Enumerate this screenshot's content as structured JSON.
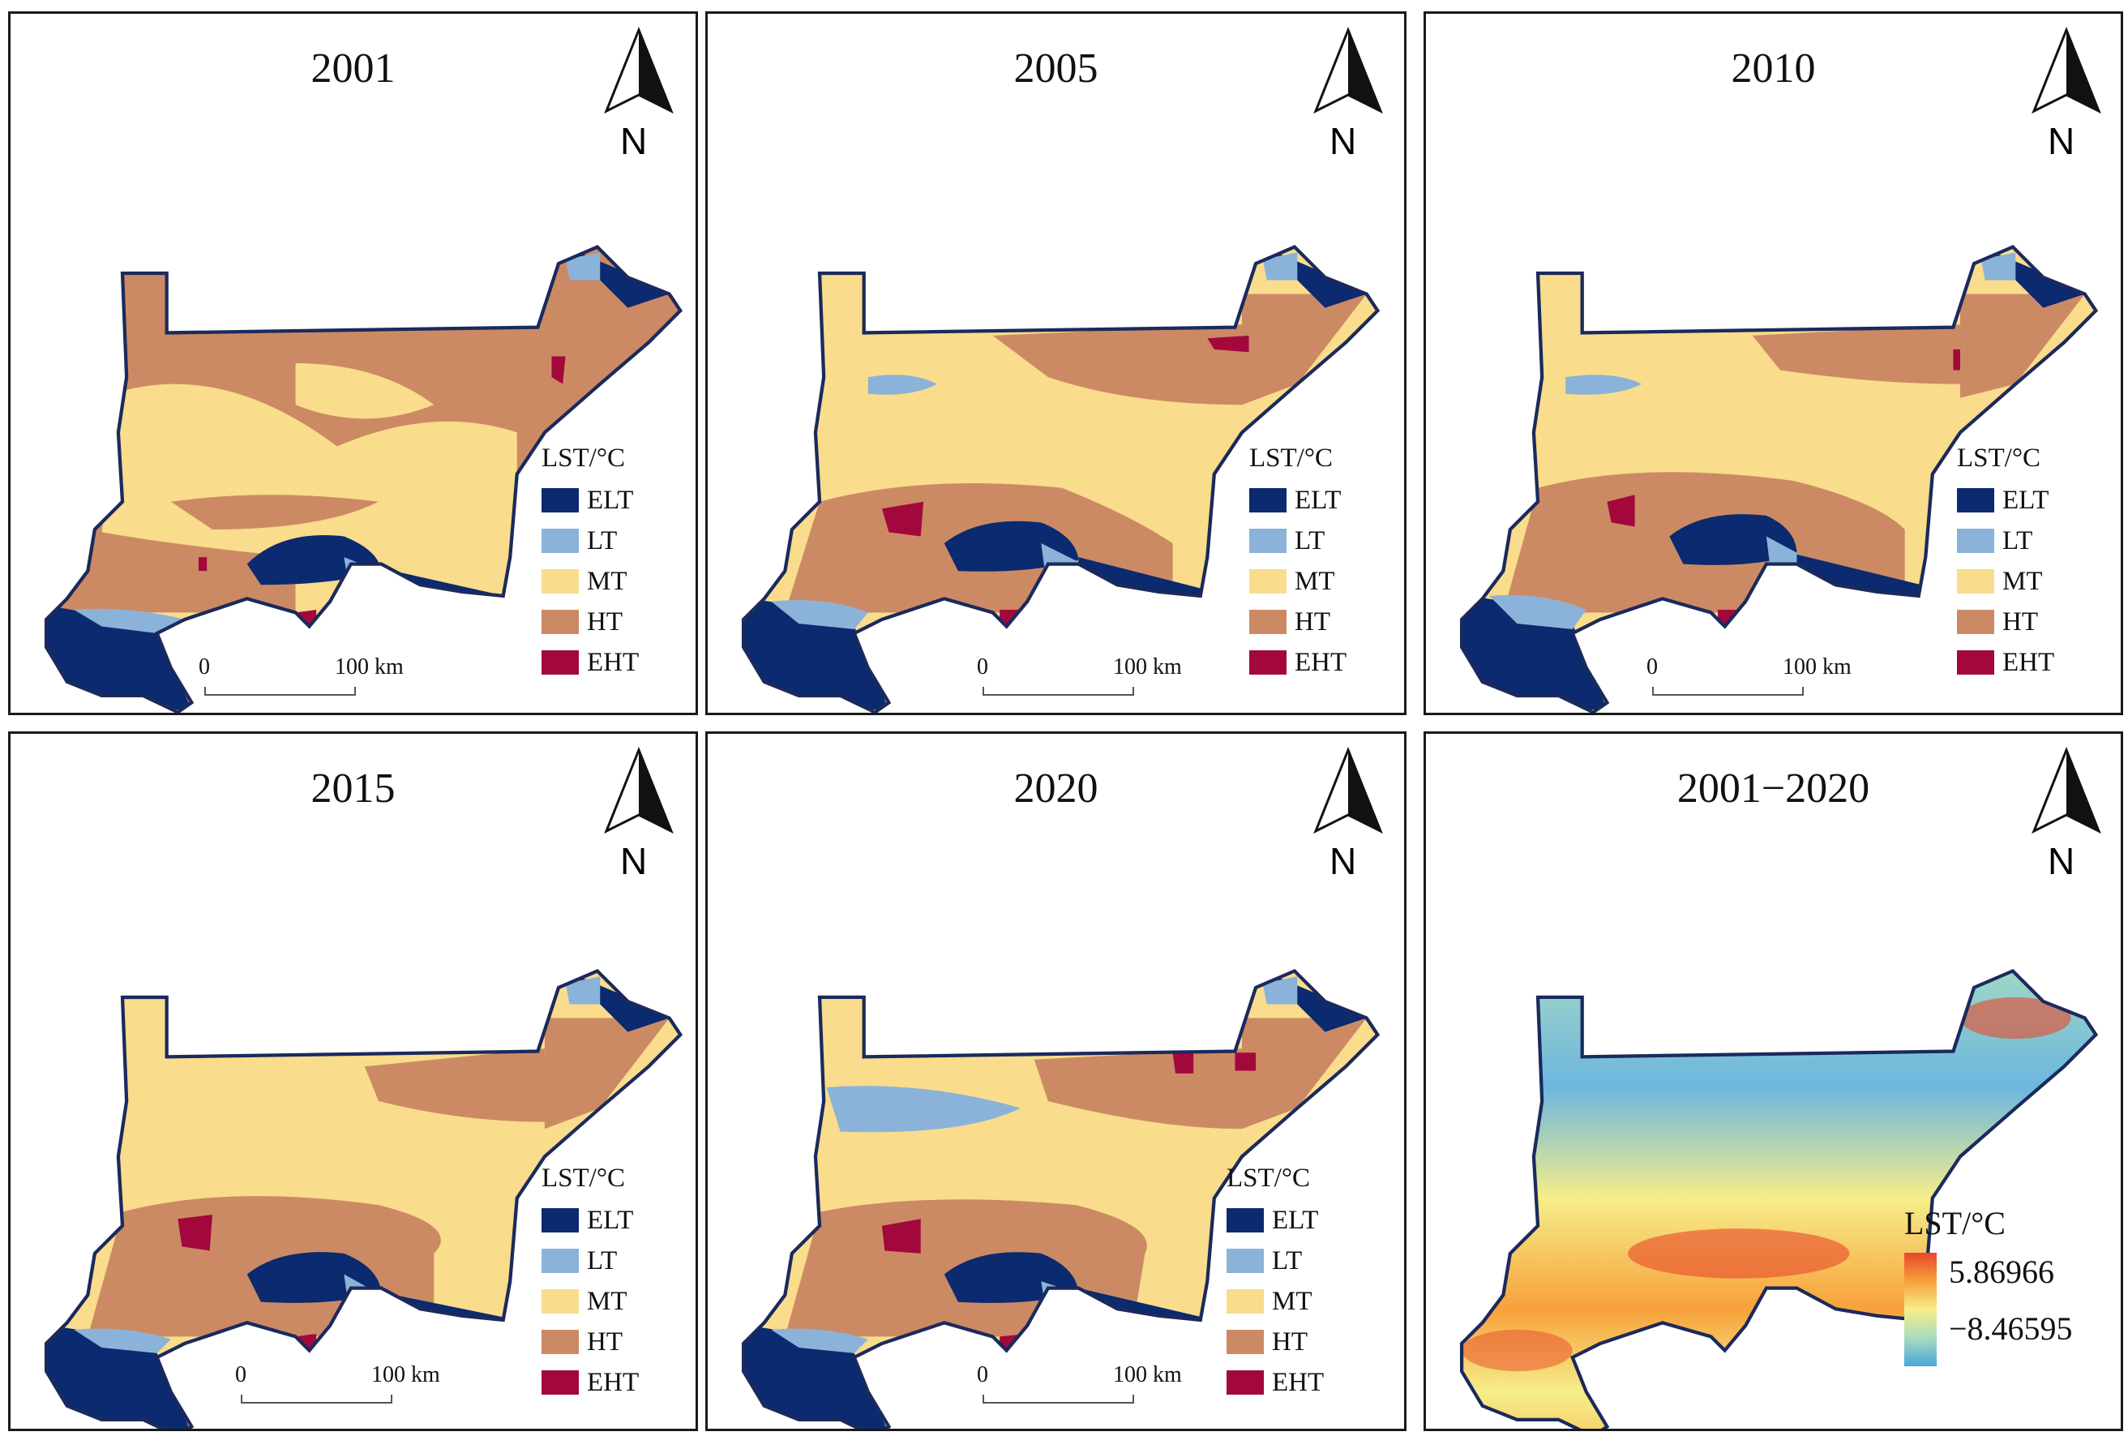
{
  "panels": [
    {
      "title": "2001",
      "legend_title": "LST/°C",
      "scale": {
        "zero": "0",
        "max": "100 km"
      }
    },
    {
      "title": "2005",
      "legend_title": "LST/°C",
      "scale": {
        "zero": "0",
        "max": "100 km"
      }
    },
    {
      "title": "2010",
      "legend_title": "LST/°C",
      "scale": {
        "zero": "0",
        "max": "100 km"
      }
    },
    {
      "title": "2015",
      "legend_title": "LST/°C",
      "scale": {
        "zero": "0",
        "max": "100 km"
      }
    },
    {
      "title": "2020",
      "legend_title": "LST/°C",
      "scale": {
        "zero": "0",
        "max": "100 km"
      }
    },
    {
      "title": "2001−2020",
      "legend_title": "LST/°C",
      "max_value": "5.86966",
      "min_value": "−8.46595"
    }
  ],
  "north_label": "N",
  "legend_classes": [
    {
      "label": "ELT",
      "color": "#0b2a6f"
    },
    {
      "label": "LT",
      "color": "#8bb3d9"
    },
    {
      "label": "MT",
      "color": "#f9dc8c"
    },
    {
      "label": "HT",
      "color": "#cc8a64"
    },
    {
      "label": "EHT",
      "color": "#a3083d"
    }
  ],
  "colors": {
    "boundary": "#1b2a5c",
    "gradient_high": "#e8472a",
    "gradient_mid": "#f6ee8a",
    "gradient_low": "#4aa6d8"
  }
}
